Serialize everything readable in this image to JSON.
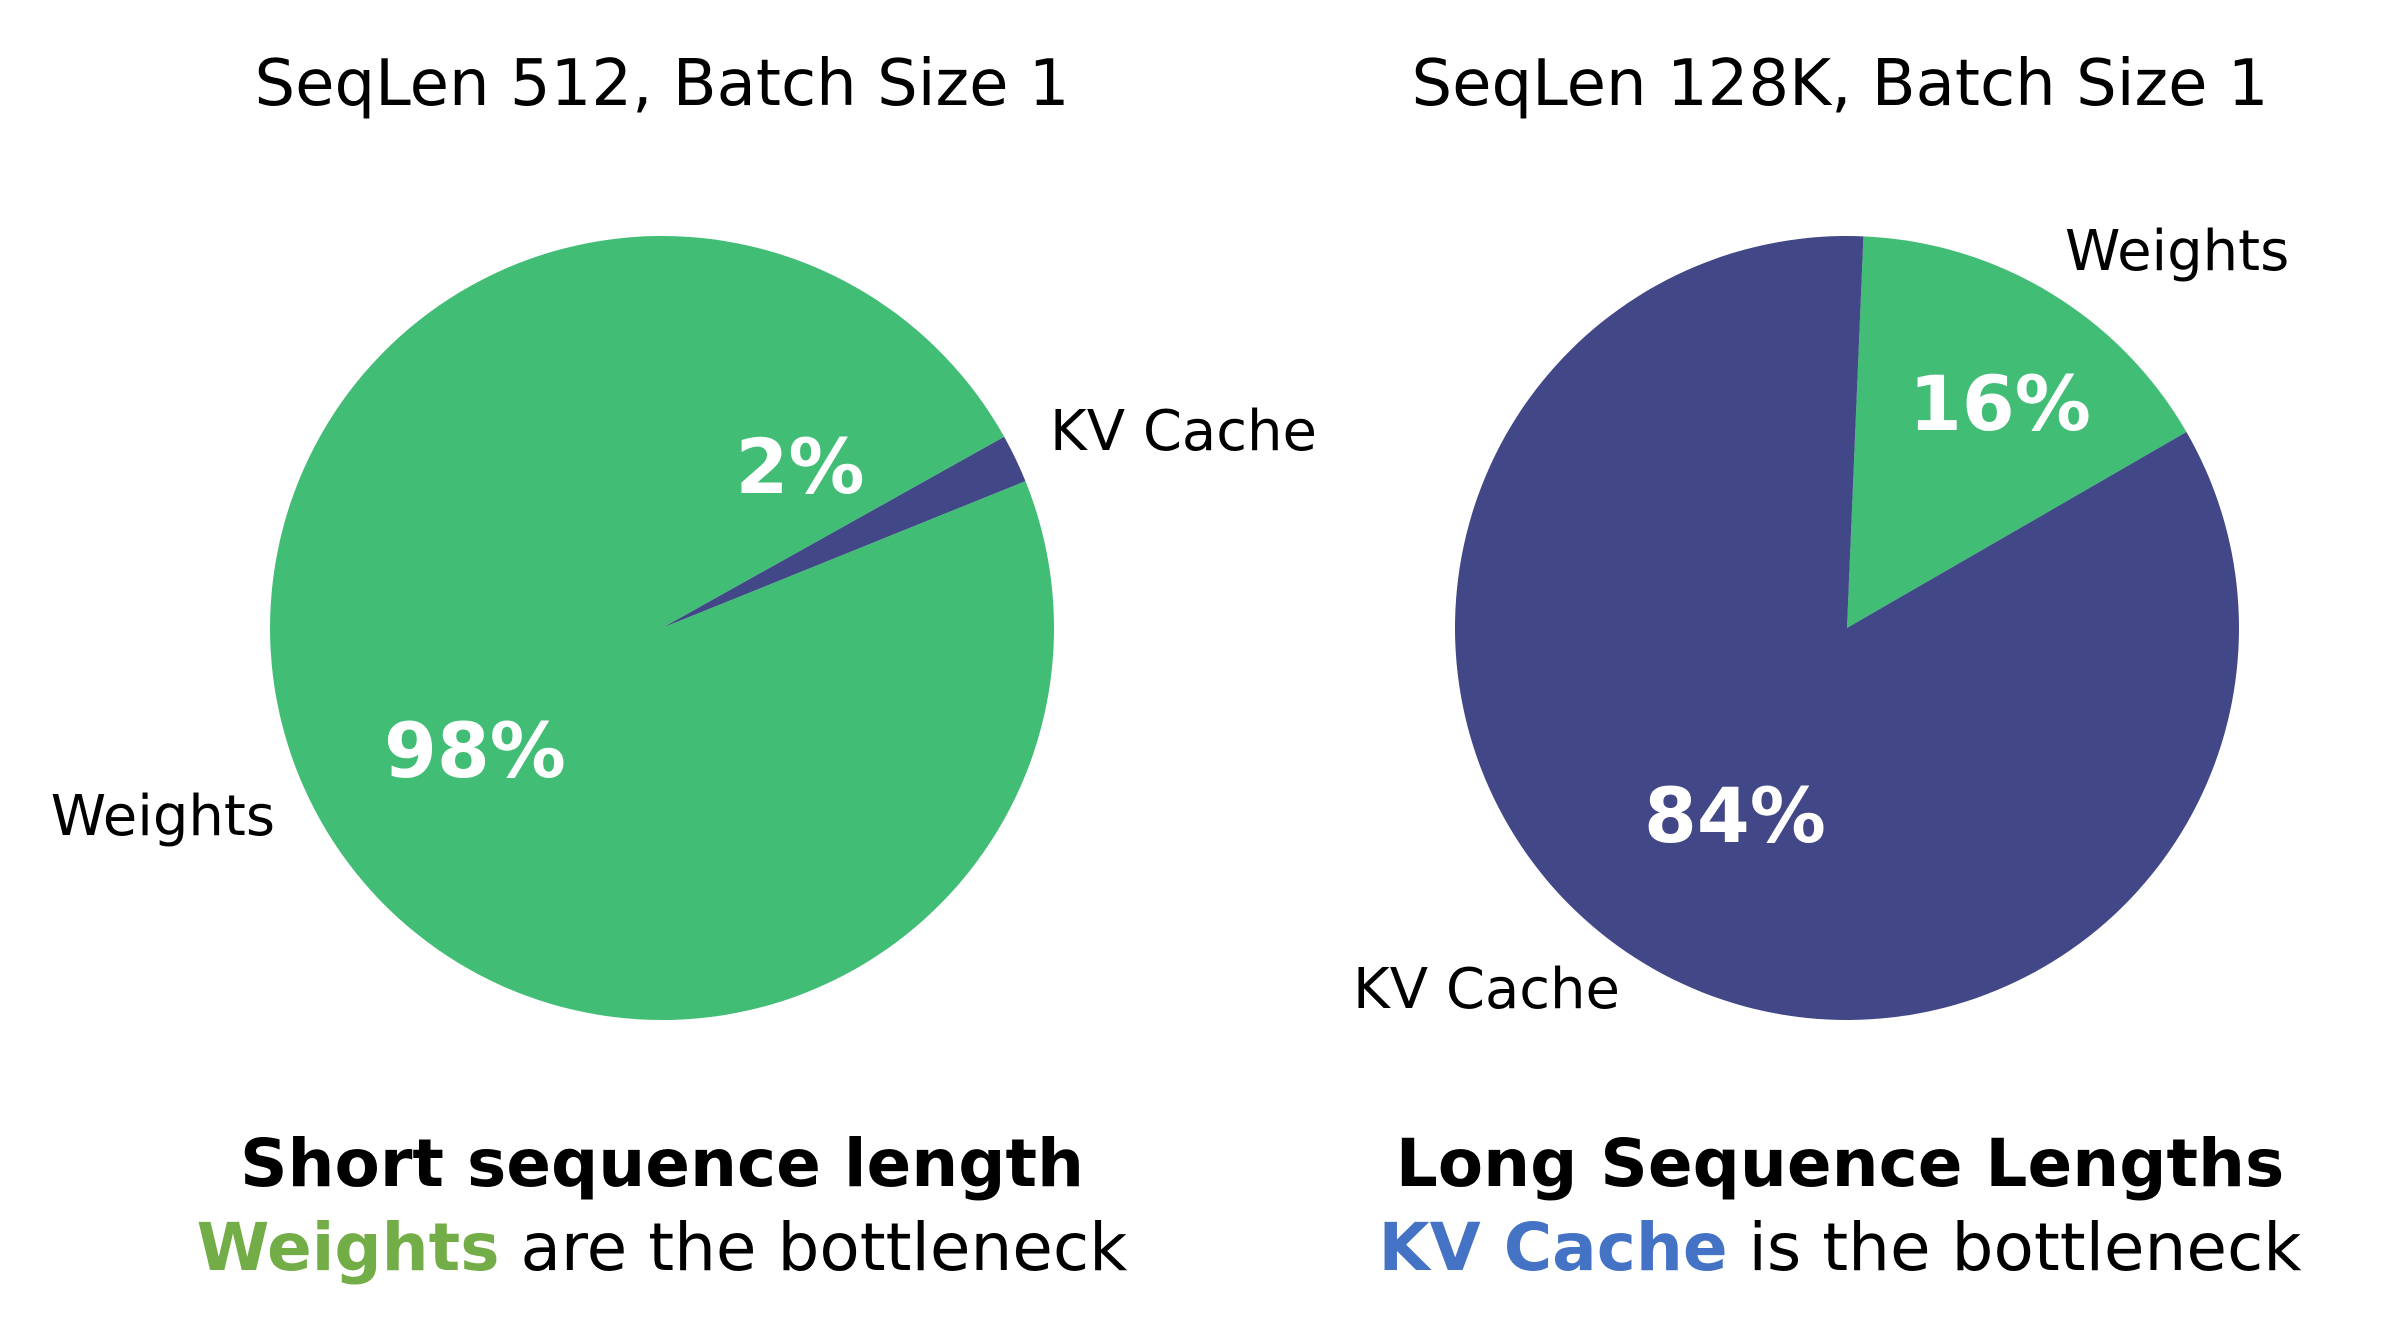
{
  "colors": {
    "weights": "#42bd76",
    "kv_cache": "#424787",
    "caption_weights": "#73ad47",
    "caption_kv": "#4472c4"
  },
  "chart_data": [
    {
      "type": "pie",
      "title": "SeqLen 512, Batch Size 1",
      "slices": [
        {
          "name": "KV Cache",
          "value": 2,
          "label": "2%"
        },
        {
          "name": "Weights",
          "value": 98,
          "label": "98%"
        }
      ]
    },
    {
      "type": "pie",
      "title": "SeqLen 128K, Batch Size 1",
      "slices": [
        {
          "name": "Weights",
          "value": 16,
          "label": "16%"
        },
        {
          "name": "KV Cache",
          "value": 84,
          "label": "84%"
        }
      ]
    }
  ],
  "captions": [
    {
      "headline": "Short sequence length",
      "highlight": "Weights",
      "rest": " are the bottleneck"
    },
    {
      "headline": "Long Sequence Lengths",
      "highlight": "KV Cache",
      "rest": " is the bottleneck"
    }
  ]
}
